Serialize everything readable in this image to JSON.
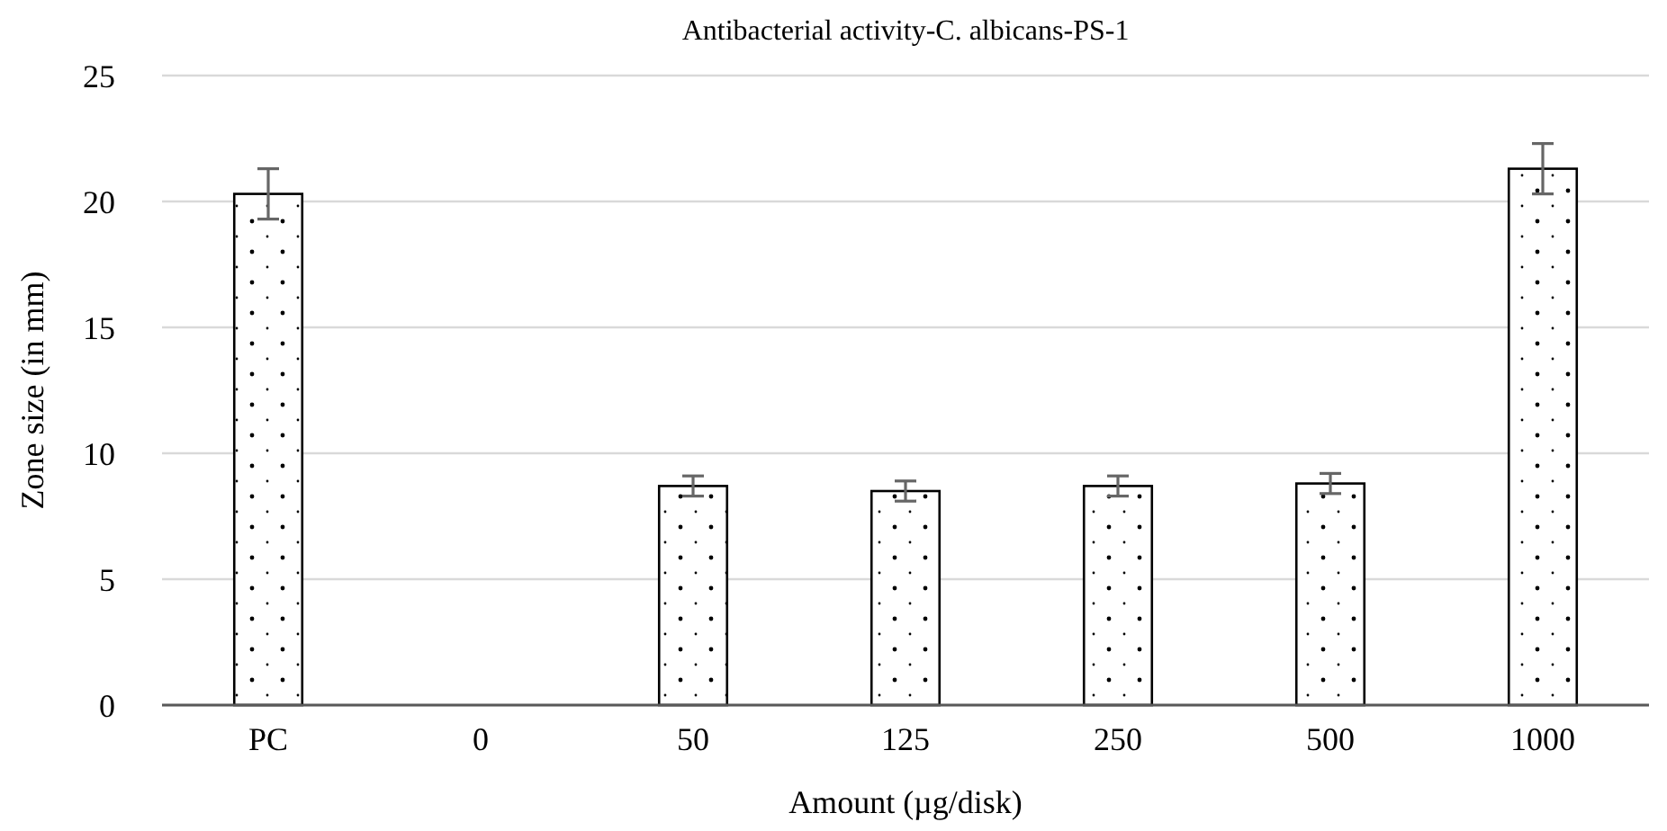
{
  "chart_data": {
    "type": "bar",
    "title": "Antibacterial activity-C. albicans-PS-1",
    "xlabel": "Amount (µg/disk)",
    "ylabel": "Zone size (in mm)",
    "categories": [
      "PC",
      "0",
      "50",
      "125",
      "250",
      "500",
      "1000"
    ],
    "values": [
      20.3,
      0,
      8.7,
      8.5,
      8.7,
      8.8,
      21.3
    ],
    "errors": [
      1.0,
      null,
      0.4,
      0.4,
      0.4,
      0.4,
      1.0
    ],
    "ylim": [
      0,
      25
    ],
    "yticks": [
      0,
      5,
      10,
      15,
      20,
      25
    ],
    "grid": "y"
  }
}
